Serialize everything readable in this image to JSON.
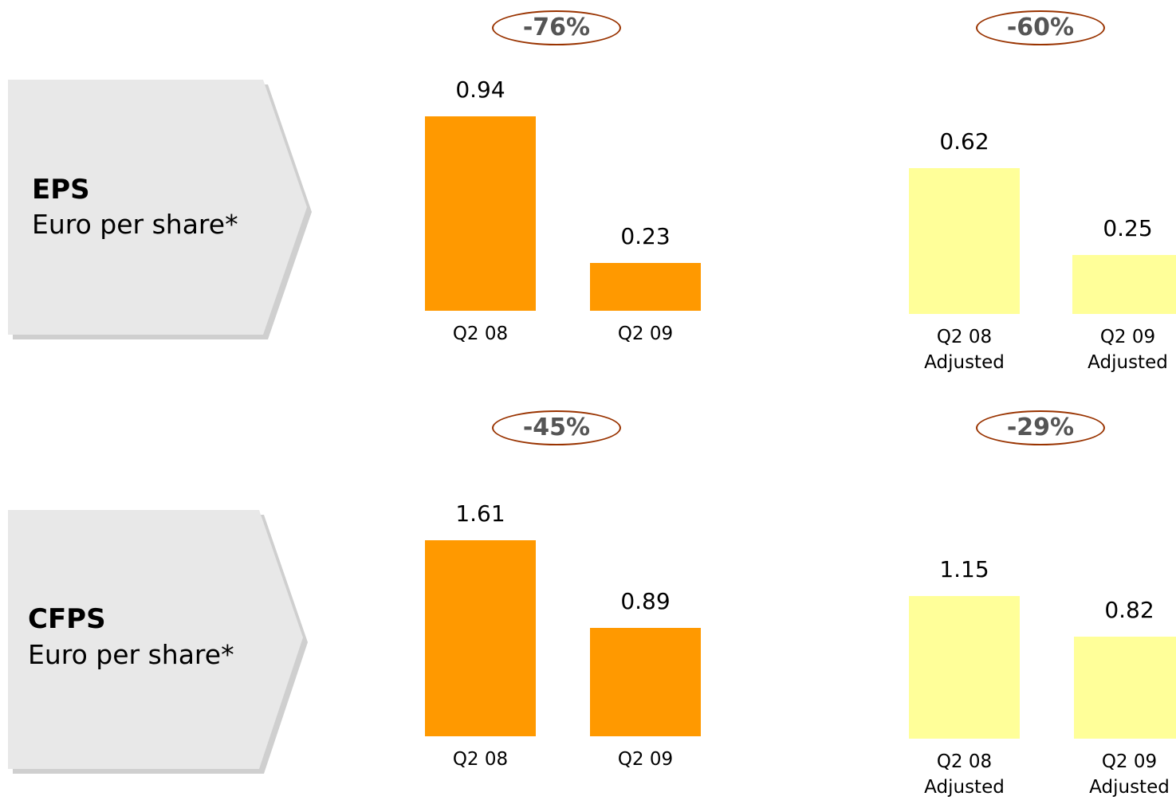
{
  "rows": [
    {
      "title": "EPS",
      "subtitle": "Euro per share*"
    },
    {
      "title": "CFPS",
      "subtitle": "Euro per share*"
    }
  ],
  "chart_data": [
    {
      "type": "bar",
      "annotation": "-76%",
      "categories": [
        "Q2 08",
        "Q2 09"
      ],
      "values": [
        0.94,
        0.23
      ],
      "color": "#ff9900",
      "ylim": [
        0,
        1.0
      ]
    },
    {
      "type": "bar",
      "annotation": "-60%",
      "categories": [
        "Q2 08 Adjusted",
        "Q2 09 Adjusted"
      ],
      "values": [
        0.62,
        0.25
      ],
      "color": "#ffff99",
      "ylim": [
        0,
        0.88
      ]
    },
    {
      "type": "bar",
      "annotation": "-45%",
      "categories": [
        "Q2 08",
        "Q2 09"
      ],
      "values": [
        1.61,
        0.89
      ],
      "color": "#ff9900",
      "ylim": [
        0,
        1.7
      ]
    },
    {
      "type": "bar",
      "annotation": "-29%",
      "categories": [
        "Q2 08 Adjusted",
        "Q2 09 Adjusted"
      ],
      "values": [
        1.15,
        0.82
      ],
      "color": "#ffff99",
      "ylim": [
        0,
        1.67
      ]
    }
  ]
}
